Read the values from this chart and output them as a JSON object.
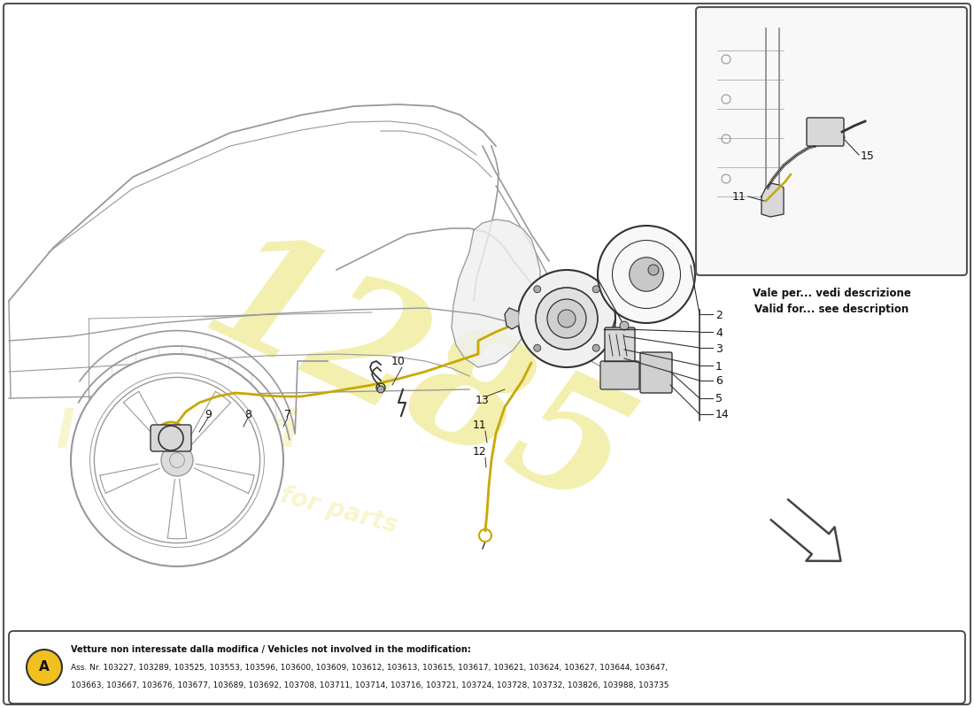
{
  "bg_color": "#ffffff",
  "car_line_color": "#999999",
  "part_line_color": "#333333",
  "cable_color": "#c8a800",
  "label_color": "#111111",
  "watermark_color": "#e8e060",
  "bottom_box": {
    "label_bg": "#f0c020",
    "line1": "Vetture non interessate dalla modifica / Vehicles not involved in the modification:",
    "line2": "Ass. Nr. 103227, 103289, 103525, 103553, 103596, 103600, 103609, 103612, 103613, 103615, 103617, 103621, 103624, 103627, 103644, 103647,",
    "line3": "103663, 103667, 103676, 103677, 103689, 103692, 103708, 103711, 103714, 103716, 103721, 103724, 103728, 103732, 103826, 103988, 103735"
  },
  "inset_caption1": "Vale per... vedi descrizione",
  "inset_caption2": "Valid for... see description",
  "watermark_nums": "1285"
}
